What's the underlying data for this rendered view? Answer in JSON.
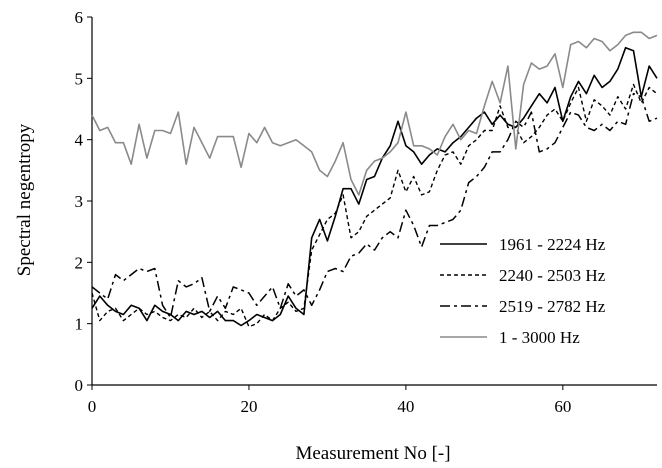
{
  "chart_data": {
    "type": "line",
    "title": "",
    "xlabel": "Measurement No [-]",
    "ylabel": "Spectral negentropy",
    "xlim": [
      0,
      72
    ],
    "ylim": [
      0,
      6
    ],
    "x_ticks": [
      0,
      20,
      40,
      60
    ],
    "y_ticks": [
      0,
      1,
      2,
      3,
      4,
      5,
      6
    ],
    "grid": false,
    "legend_position": "lower-right",
    "x": [
      0,
      1,
      2,
      3,
      4,
      5,
      6,
      7,
      8,
      9,
      10,
      11,
      12,
      13,
      14,
      15,
      16,
      17,
      18,
      19,
      20,
      21,
      22,
      23,
      24,
      25,
      26,
      27,
      28,
      29,
      30,
      31,
      32,
      33,
      34,
      35,
      36,
      37,
      38,
      39,
      40,
      41,
      42,
      43,
      44,
      45,
      46,
      47,
      48,
      49,
      50,
      51,
      52,
      53,
      54,
      55,
      56,
      57,
      58,
      59,
      60,
      61,
      62,
      63,
      64,
      65,
      66,
      67,
      68,
      69,
      70,
      71,
      72
    ],
    "series": [
      {
        "name": "1961 - 2224 Hz",
        "color": "#000000",
        "dash": "solid",
        "values": [
          1.25,
          1.45,
          1.3,
          1.2,
          1.15,
          1.3,
          1.25,
          1.05,
          1.3,
          1.2,
          1.15,
          1.05,
          1.2,
          1.15,
          1.2,
          1.1,
          1.2,
          1.05,
          1.05,
          0.97,
          1.05,
          1.15,
          1.1,
          1.05,
          1.15,
          1.45,
          1.25,
          1.15,
          2.4,
          2.7,
          2.35,
          2.75,
          3.2,
          3.2,
          2.95,
          3.35,
          3.4,
          3.7,
          3.9,
          4.3,
          3.9,
          3.8,
          3.6,
          3.75,
          3.85,
          3.8,
          3.95,
          4.05,
          4.2,
          4.35,
          4.45,
          4.25,
          4.4,
          4.25,
          4.2,
          4.35,
          4.55,
          4.75,
          4.6,
          4.85,
          4.3,
          4.7,
          4.95,
          4.75,
          5.05,
          4.85,
          4.95,
          5.15,
          5.5,
          5.45,
          4.7,
          5.2,
          5.0
        ]
      },
      {
        "name": "2240 - 2503 Hz",
        "color": "#000000",
        "dash": "dashed",
        "values": [
          1.5,
          1.05,
          1.2,
          1.25,
          1.05,
          1.15,
          1.25,
          1.15,
          1.2,
          1.1,
          1.05,
          1.15,
          1.1,
          1.25,
          1.1,
          1.2,
          1.05,
          1.2,
          1.15,
          1.25,
          0.95,
          1.0,
          1.15,
          1.05,
          1.25,
          1.35,
          1.2,
          1.25,
          2.2,
          2.45,
          2.7,
          2.8,
          3.1,
          2.4,
          2.5,
          2.75,
          2.85,
          2.95,
          3.05,
          3.5,
          3.15,
          3.4,
          3.1,
          3.15,
          3.5,
          3.75,
          3.8,
          3.6,
          3.9,
          4.0,
          4.15,
          4.15,
          4.55,
          4.2,
          4.2,
          3.95,
          4.05,
          4.2,
          4.4,
          4.5,
          4.3,
          4.6,
          4.85,
          4.3,
          4.65,
          4.55,
          4.4,
          4.7,
          4.5,
          4.9,
          4.6,
          4.85,
          4.75
        ]
      },
      {
        "name": "2519 - 2782 Hz",
        "color": "#000000",
        "dash": "dashdot",
        "values": [
          1.6,
          1.5,
          1.4,
          1.8,
          1.7,
          1.8,
          1.9,
          1.85,
          1.9,
          1.3,
          1.1,
          1.7,
          1.6,
          1.65,
          1.75,
          1.2,
          1.45,
          1.25,
          1.6,
          1.55,
          1.5,
          1.3,
          1.45,
          1.6,
          1.25,
          1.65,
          1.45,
          1.55,
          1.3,
          1.55,
          1.85,
          1.9,
          1.85,
          2.1,
          2.15,
          2.3,
          2.2,
          2.4,
          2.5,
          2.4,
          2.85,
          2.6,
          2.25,
          2.6,
          2.6,
          2.65,
          2.7,
          2.85,
          3.3,
          3.4,
          3.55,
          3.8,
          3.8,
          4.0,
          4.3,
          4.2,
          4.45,
          3.8,
          3.85,
          3.95,
          4.2,
          4.45,
          4.4,
          4.2,
          4.15,
          4.25,
          4.15,
          4.3,
          4.25,
          4.75,
          4.7,
          4.3,
          4.35
        ]
      },
      {
        "name": "1 - 3000 Hz",
        "color": "#8a8a8a",
        "dash": "solid",
        "values": [
          4.4,
          4.15,
          4.2,
          3.95,
          3.95,
          3.6,
          4.25,
          3.7,
          4.15,
          4.15,
          4.1,
          4.45,
          3.6,
          4.2,
          3.95,
          3.7,
          4.05,
          4.05,
          4.05,
          3.55,
          4.1,
          3.95,
          4.2,
          3.95,
          3.9,
          3.95,
          4.0,
          3.9,
          3.8,
          3.5,
          3.4,
          3.65,
          3.95,
          3.35,
          3.1,
          3.5,
          3.65,
          3.7,
          3.8,
          3.95,
          4.45,
          3.9,
          3.9,
          3.85,
          3.75,
          4.05,
          4.25,
          4.0,
          4.15,
          4.1,
          4.55,
          4.95,
          4.6,
          5.2,
          3.85,
          4.9,
          5.25,
          5.15,
          5.2,
          5.4,
          4.85,
          5.55,
          5.6,
          5.5,
          5.65,
          5.6,
          5.45,
          5.55,
          5.7,
          5.75,
          5.75,
          5.65,
          5.7
        ]
      }
    ]
  }
}
